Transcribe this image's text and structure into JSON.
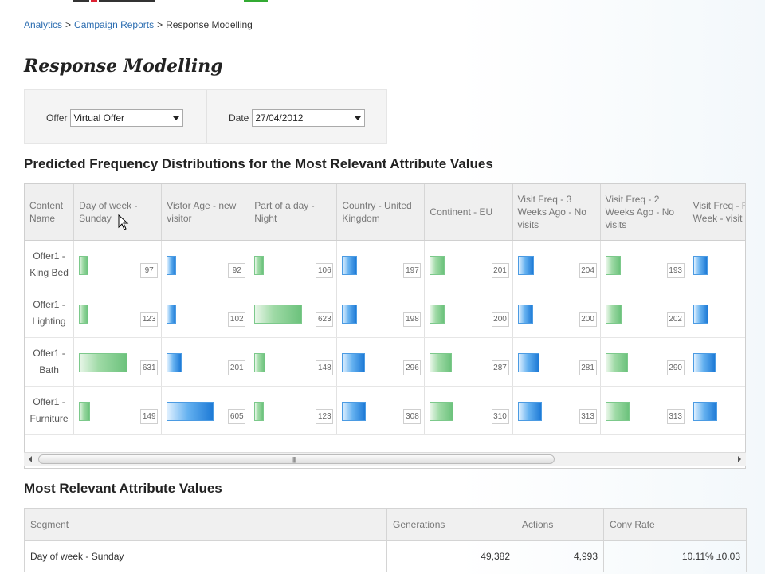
{
  "breadcrumb": {
    "items": [
      "Analytics",
      "Campaign Reports"
    ],
    "separator": ">",
    "current": "Response Modelling"
  },
  "page_title": "Response Modelling",
  "filters": {
    "offer_label": "Offer",
    "offer_value": "Virtual Offer",
    "date_label": "Date",
    "date_value": "27/04/2012"
  },
  "predicted": {
    "title": "Predicted Frequency Distributions for the Most Relevant Attribute Values",
    "columns": [
      {
        "label": "Content Name"
      },
      {
        "label": "Day of week - Sunday",
        "color": "green"
      },
      {
        "label": "Vistor Age - new visitor",
        "color": "blue"
      },
      {
        "label": "Part of a day - Night",
        "color": "green"
      },
      {
        "label": "Country - United Kingdom",
        "color": "blue"
      },
      {
        "label": "Continent - EU",
        "color": "green"
      },
      {
        "label": "Visit Freq - 3 Weeks Ago - No visits",
        "color": "blue"
      },
      {
        "label": "Visit Freq - 2 Weeks Ago - No visits",
        "color": "green"
      },
      {
        "label": "Visit Freq - Recent Week - visit a week",
        "color": "blue"
      }
    ],
    "rows": [
      {
        "name": "Offer1 - King Bed",
        "values": [
          97,
          92,
          106,
          197,
          201,
          204,
          193,
          190
        ]
      },
      {
        "name": "Offer1 - Lighting",
        "values": [
          123,
          102,
          623,
          198,
          200,
          200,
          202,
          199
        ]
      },
      {
        "name": "Offer1 - Bath",
        "values": [
          631,
          201,
          148,
          296,
          287,
          281,
          290,
          292
        ]
      },
      {
        "name": "Offer1 - Furniture",
        "values": [
          149,
          605,
          123,
          308,
          310,
          313,
          313,
          311
        ]
      }
    ],
    "max_value": 640
  },
  "relevant": {
    "title": "Most Relevant Attribute Values",
    "headers": [
      "Segment",
      "Generations",
      "Actions",
      "Conv Rate"
    ],
    "rows": [
      [
        "Day of week - Sunday",
        "49,382",
        "4,993",
        "10.11% ±0.03"
      ]
    ]
  },
  "icons": {
    "cursor": "mouse-pointer-icon",
    "scroll_left": "arrow-left-icon",
    "scroll_right": "arrow-right-icon",
    "dropdown": "chevron-down-icon"
  },
  "colors": {
    "link": "#2a6cb0",
    "bar_green": "#6cc27c",
    "bar_blue": "#1e7ad6"
  }
}
